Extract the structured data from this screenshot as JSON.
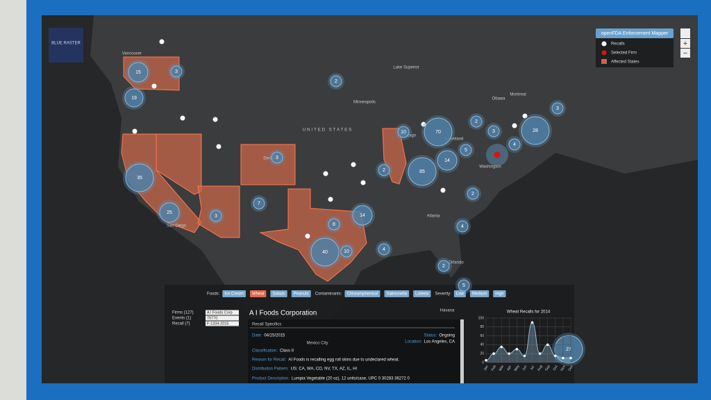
{
  "logo": "BLUE RASTER",
  "legend": {
    "title": "openFDA Enforcement Mapper",
    "items": [
      "Recalls",
      "Selected Firm",
      "Affected States"
    ]
  },
  "zoom": {
    "in": "+",
    "out": "−"
  },
  "map_labels": [
    "Vancouver",
    "Lake Superior",
    "Minneapolis",
    "UNITED STATES",
    "Ottawa",
    "Montreal",
    "Chicago",
    "Cleveland",
    "Washington",
    "Atlanta",
    "Denver",
    "San Diego",
    "Orlando",
    "Mexico City",
    "Havana"
  ],
  "clusters": [
    "15",
    "3",
    "19",
    "2",
    "10",
    "70",
    "2",
    "3",
    "28",
    "3",
    "3",
    "35",
    "2",
    "85",
    "14",
    "5",
    "4",
    "25",
    "3",
    "7",
    "14",
    "8",
    "2",
    "4",
    "40",
    "10",
    "4",
    "2",
    "5",
    "27"
  ],
  "filters": {
    "foods_label": "Foods:",
    "foods": [
      "Ice Cream",
      "Wheat",
      "Salads",
      "Peanuts"
    ],
    "contaminants_label": "Contaminants:",
    "contaminants": [
      "Chloramphenicol",
      "Salmonella",
      "Listeria"
    ],
    "severity_label": "Severity:",
    "severity": [
      "Low",
      "Medium",
      "High"
    ]
  },
  "selectors": {
    "labels": [
      "Firms (127)",
      "Events (1)",
      "Recall (7)"
    ],
    "values": [
      "A I Foods Corp",
      "70770",
      "F-1334-2015"
    ]
  },
  "details": {
    "firm": "A I Foods Corporation",
    "heading": "Recall Specifics",
    "fields": [
      {
        "label": "Date:",
        "value": "04/15/2015"
      },
      {
        "label": "Status:",
        "value": "Ongoing"
      },
      {
        "label": "Location:",
        "value": "Los Angeles, CA"
      },
      {
        "label": "Classification:",
        "value": "Class II"
      },
      {
        "label": "Reason for Recall:",
        "value": "AI Foods is recalling egg roll skins due to undeclared wheat."
      },
      {
        "label": "Distribution Pattern:",
        "value": "US: CA, WA, CO, NV, TX, AZ, IL, HI"
      },
      {
        "label": "Product Description:",
        "value": "Lumpia Vegetable (20 oz), 12 units/case, UPC 0 30283 36272 0"
      }
    ]
  },
  "chart_data": {
    "type": "line",
    "title": "Wheat Recalls for 2014",
    "categories": [
      "Jan",
      "Feb",
      "Mar",
      "Apr",
      "May",
      "Jun",
      "Jul",
      "Aug",
      "Sep",
      "Oct",
      "Nov",
      "Dec"
    ],
    "values": [
      5,
      20,
      35,
      20,
      30,
      15,
      90,
      20,
      40,
      15,
      10,
      10
    ],
    "color": "#8fb8d8",
    "ylim": [
      0,
      100
    ],
    "yticks": [
      0,
      20,
      40,
      60,
      80,
      100
    ],
    "grid": true
  }
}
